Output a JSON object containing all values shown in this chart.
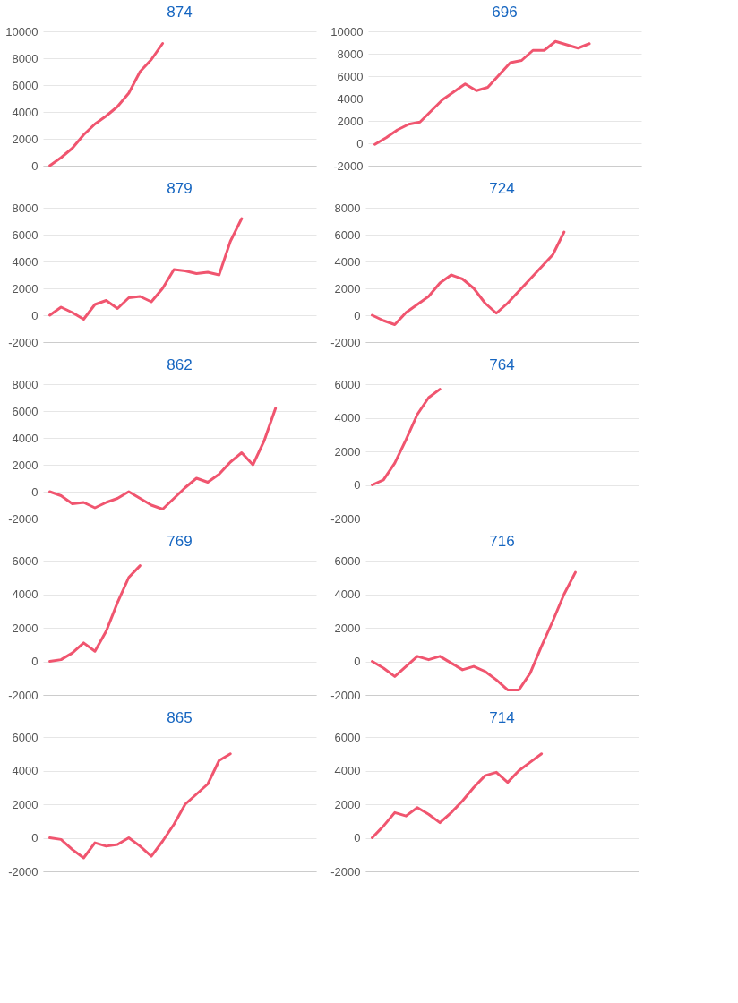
{
  "chart_data": [
    {
      "type": "line",
      "title": "874",
      "categories": [
        null,
        null,
        null,
        null,
        null,
        null,
        null,
        null,
        null,
        null,
        null,
        null,
        null,
        null,
        null,
        null,
        null,
        null,
        null,
        null,
        null,
        null,
        null,
        null
      ],
      "series": [
        {
          "color": "#f0556f",
          "values": [
            0,
            600,
            1300,
            2300,
            3100,
            3700,
            4400,
            5400,
            7000,
            7900,
            9100,
            null,
            null,
            null,
            null,
            null,
            null,
            null,
            null,
            null,
            null,
            null,
            null,
            null
          ]
        }
      ],
      "ylim": [
        0,
        10000
      ],
      "yticks": [
        0,
        2000,
        4000,
        6000,
        8000,
        10000
      ],
      "grid": "y",
      "tick_labels": "y"
    },
    {
      "type": "line",
      "title": "696",
      "categories": [
        null,
        null,
        null,
        null,
        null,
        null,
        null,
        null,
        null,
        null,
        null,
        null,
        null,
        null,
        null,
        null,
        null,
        null,
        null,
        null,
        null,
        null,
        null,
        null
      ],
      "series": [
        {
          "color": "#f0556f",
          "values": [
            -100,
            500,
            1200,
            1700,
            1900,
            2900,
            3900,
            4600,
            5300,
            4700,
            5000,
            6100,
            7200,
            7400,
            8300,
            8300,
            9100,
            8800,
            8500,
            8900,
            null,
            null,
            null,
            null
          ]
        }
      ],
      "ylim": [
        -2000,
        10000
      ],
      "yticks": [
        -2000,
        0,
        2000,
        4000,
        6000,
        8000,
        10000
      ],
      "grid": "y",
      "tick_labels": "y"
    },
    {
      "type": "line",
      "title": "879",
      "categories": [
        null,
        null,
        null,
        null,
        null,
        null,
        null,
        null,
        null,
        null,
        null,
        null,
        null,
        null,
        null,
        null,
        null,
        null,
        null,
        null,
        null,
        null,
        null,
        null
      ],
      "series": [
        {
          "color": "#f0556f",
          "values": [
            0,
            600,
            200,
            -300,
            800,
            1100,
            500,
            1300,
            1400,
            1000,
            2000,
            3400,
            3300,
            3100,
            3200,
            3000,
            5500,
            7200,
            null,
            null,
            null,
            null,
            null,
            null
          ]
        }
      ],
      "ylim": [
        -2000,
        8000
      ],
      "yticks": [
        -2000,
        0,
        2000,
        4000,
        6000,
        8000
      ],
      "grid": "y",
      "tick_labels": "y"
    },
    {
      "type": "line",
      "title": "724",
      "categories": [
        null,
        null,
        null,
        null,
        null,
        null,
        null,
        null,
        null,
        null,
        null,
        null,
        null,
        null,
        null,
        null,
        null,
        null,
        null,
        null,
        null,
        null,
        null,
        null
      ],
      "series": [
        {
          "color": "#f0556f",
          "values": [
            0,
            -400,
            -700,
            200,
            800,
            1400,
            2400,
            3000,
            2700,
            2000,
            900,
            150,
            900,
            1800,
            2700,
            3600,
            4500,
            6200,
            null,
            null,
            null,
            null,
            null,
            null
          ]
        }
      ],
      "ylim": [
        -2000,
        8000
      ],
      "yticks": [
        -2000,
        0,
        2000,
        4000,
        6000,
        8000
      ],
      "grid": "y",
      "tick_labels": "y"
    },
    {
      "type": "line",
      "title": "862",
      "categories": [
        null,
        null,
        null,
        null,
        null,
        null,
        null,
        null,
        null,
        null,
        null,
        null,
        null,
        null,
        null,
        null,
        null,
        null,
        null,
        null,
        null,
        null,
        null,
        null
      ],
      "series": [
        {
          "color": "#f0556f",
          "values": [
            0,
            -300,
            -900,
            -800,
            -1200,
            -800,
            -500,
            0,
            -500,
            -1000,
            -1300,
            -500,
            300,
            1000,
            700,
            1300,
            2200,
            2900,
            2000,
            3800,
            6200,
            null,
            null,
            null
          ]
        }
      ],
      "ylim": [
        -2000,
        8000
      ],
      "yticks": [
        -2000,
        0,
        2000,
        4000,
        6000,
        8000
      ],
      "grid": "y",
      "tick_labels": "y"
    },
    {
      "type": "line",
      "title": "764",
      "categories": [
        null,
        null,
        null,
        null,
        null,
        null,
        null,
        null,
        null,
        null,
        null,
        null,
        null,
        null,
        null,
        null,
        null,
        null,
        null,
        null,
        null,
        null,
        null,
        null
      ],
      "series": [
        {
          "color": "#f0556f",
          "values": [
            0,
            300,
            1300,
            2700,
            4200,
            5200,
            5700,
            null,
            null,
            null,
            null,
            null,
            null,
            null,
            null,
            null,
            null,
            null,
            null,
            null,
            null,
            null,
            null,
            null
          ]
        }
      ],
      "ylim": [
        -2000,
        6000
      ],
      "yticks": [
        -2000,
        0,
        2000,
        4000,
        6000
      ],
      "grid": "y",
      "tick_labels": "y"
    },
    {
      "type": "line",
      "title": "769",
      "categories": [
        null,
        null,
        null,
        null,
        null,
        null,
        null,
        null,
        null,
        null,
        null,
        null,
        null,
        null,
        null,
        null,
        null,
        null,
        null,
        null,
        null,
        null,
        null,
        null
      ],
      "series": [
        {
          "color": "#f0556f",
          "values": [
            0,
            100,
            500,
            1100,
            600,
            1800,
            3500,
            5000,
            5700,
            null,
            null,
            null,
            null,
            null,
            null,
            null,
            null,
            null,
            null,
            null,
            null,
            null,
            null,
            null
          ]
        }
      ],
      "ylim": [
        -2000,
        6000
      ],
      "yticks": [
        -2000,
        0,
        2000,
        4000,
        6000
      ],
      "grid": "y",
      "tick_labels": "y"
    },
    {
      "type": "line",
      "title": "716",
      "categories": [
        null,
        null,
        null,
        null,
        null,
        null,
        null,
        null,
        null,
        null,
        null,
        null,
        null,
        null,
        null,
        null,
        null,
        null,
        null,
        null,
        null,
        null,
        null,
        null
      ],
      "series": [
        {
          "color": "#f0556f",
          "values": [
            0,
            -400,
            -900,
            -300,
            300,
            100,
            300,
            -100,
            -500,
            -300,
            -600,
            -1100,
            -1700,
            -1700,
            -700,
            900,
            2400,
            4000,
            5300,
            null,
            null,
            null,
            null,
            null
          ]
        }
      ],
      "ylim": [
        -2000,
        6000
      ],
      "yticks": [
        -2000,
        0,
        2000,
        4000,
        6000
      ],
      "grid": "y",
      "tick_labels": "y"
    },
    {
      "type": "line",
      "title": "865",
      "categories": [
        null,
        null,
        null,
        null,
        null,
        null,
        null,
        null,
        null,
        null,
        null,
        null,
        null,
        null,
        null,
        null,
        null,
        null,
        null,
        null,
        null,
        null,
        null,
        null
      ],
      "series": [
        {
          "color": "#f0556f",
          "values": [
            0,
            -100,
            -700,
            -1200,
            -300,
            -500,
            -400,
            0,
            -500,
            -1100,
            -200,
            800,
            2000,
            2600,
            3200,
            4600,
            5000,
            null,
            null,
            null,
            null,
            null,
            null,
            null
          ]
        }
      ],
      "ylim": [
        -2000,
        6000
      ],
      "yticks": [
        -2000,
        0,
        2000,
        4000,
        6000
      ],
      "grid": "y",
      "tick_labels": "y"
    },
    {
      "type": "line",
      "title": "714",
      "categories": [
        null,
        null,
        null,
        null,
        null,
        null,
        null,
        null,
        null,
        null,
        null,
        null,
        null,
        null,
        null,
        null,
        null,
        null,
        null,
        null,
        null,
        null,
        null,
        null
      ],
      "series": [
        {
          "color": "#f0556f",
          "values": [
            0,
            700,
            1500,
            1300,
            1800,
            1400,
            900,
            1500,
            2200,
            3000,
            3700,
            3900,
            3300,
            4000,
            4500,
            5000,
            null,
            null,
            null,
            null,
            null,
            null,
            null,
            null
          ]
        }
      ],
      "ylim": [
        -2000,
        6000
      ],
      "yticks": [
        -2000,
        0,
        2000,
        4000,
        6000
      ],
      "grid": "y",
      "tick_labels": "y"
    }
  ]
}
